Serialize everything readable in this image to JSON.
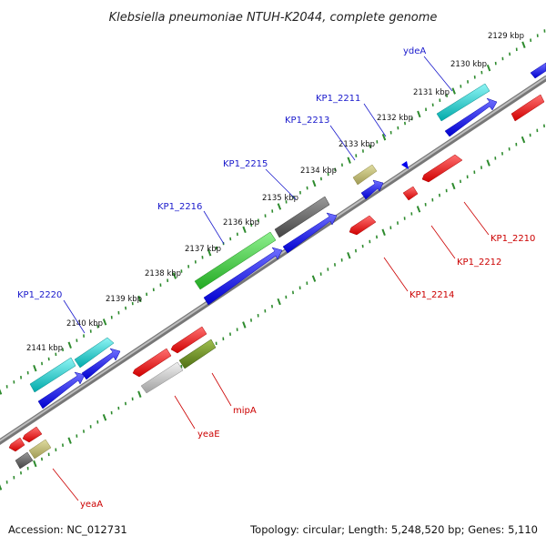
{
  "title": "Klebsiella pneumoniae NTUH-K2044, complete genome",
  "accession": "Accession: NC_012731",
  "topology": "Topology: circular; Length: 5,248,520 bp; Genes: 5,110",
  "colors": {
    "forward_label": "#1a1acc",
    "reverse_label": "#cc0000",
    "ruler_ticks": "#2e8b2e",
    "genome_line": "#808080",
    "cds_forward": "#0000ee",
    "cds_reverse": "#ee0000",
    "rna": "#00bfbf",
    "pseudo": "#666666",
    "highlight_green": "#33cc33",
    "olive": "#6b8e23",
    "khaki": "#bdb76b",
    "silver": "#c0c0c0"
  },
  "kbp_ticks": [
    {
      "kbp": 2129,
      "label": "2129 kbp"
    },
    {
      "kbp": 2130,
      "label": "2130 kbp"
    },
    {
      "kbp": 2131,
      "label": "2131 kbp"
    },
    {
      "kbp": 2132,
      "label": "2132 kbp"
    },
    {
      "kbp": 2133,
      "label": "2133 kbp"
    },
    {
      "kbp": 2134,
      "label": "2134 kbp"
    },
    {
      "kbp": 2135,
      "label": "2135 kbp"
    },
    {
      "kbp": 2136,
      "label": "2136 kbp"
    },
    {
      "kbp": 2137,
      "label": "2137 kbp"
    },
    {
      "kbp": 2138,
      "label": "2138 kbp"
    },
    {
      "kbp": 2139,
      "label": "2139 kbp"
    },
    {
      "kbp": 2140,
      "label": "2140 kbp"
    },
    {
      "kbp": 2141,
      "label": "2141 kbp"
    }
  ],
  "gene_labels_forward": [
    "ydeA",
    "KP1_2211",
    "KP1_2213",
    "KP1_2215",
    "KP1_2216",
    "KP1_2220"
  ],
  "gene_labels_reverse": [
    "KP1_2210",
    "KP1_2212",
    "KP1_2214",
    "mipA",
    "yeaE",
    "yeaA"
  ]
}
